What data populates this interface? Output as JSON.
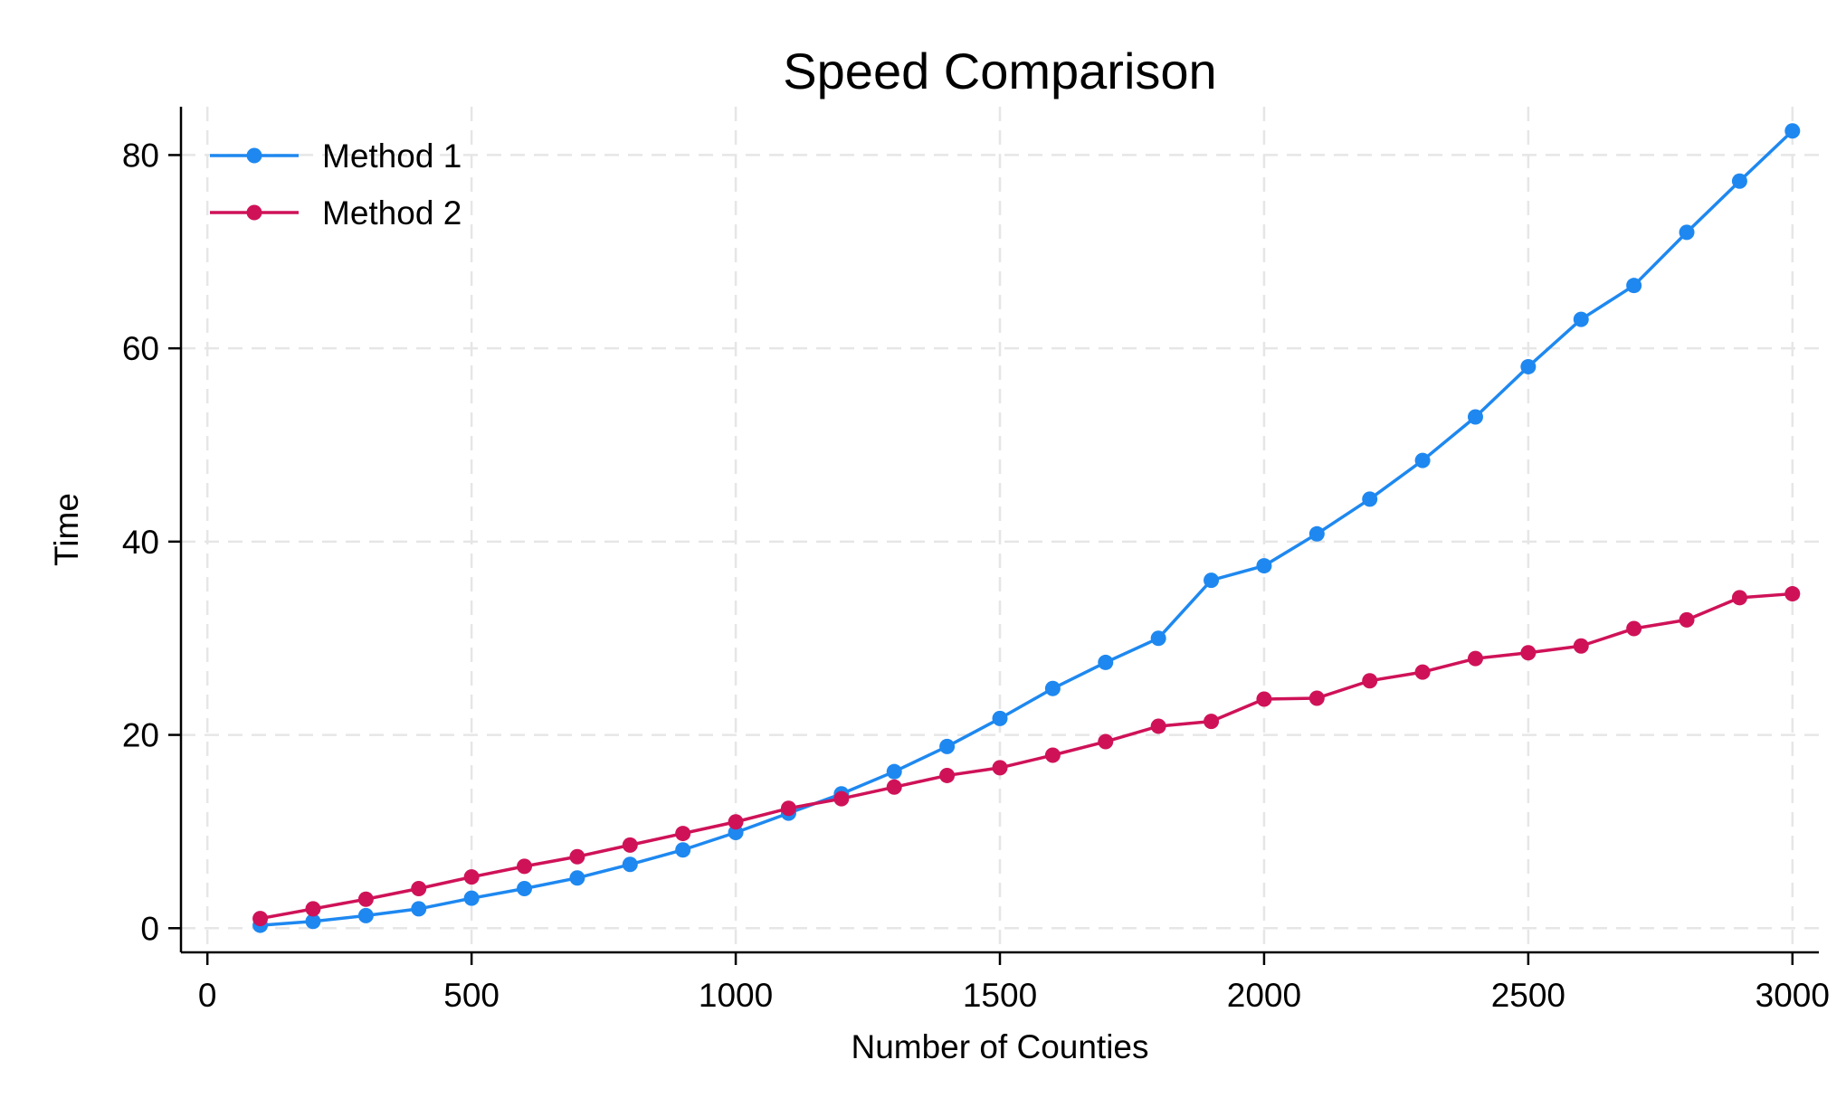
{
  "chart_data": {
    "type": "line",
    "title": "Speed Comparison",
    "xlabel": "Number of Counties",
    "ylabel": "Time",
    "xlim": [
      -50,
      3050
    ],
    "ylim": [
      -2.5,
      85
    ],
    "xticks": [
      0,
      500,
      1000,
      1500,
      2000,
      2500,
      3000
    ],
    "yticks": [
      0,
      20,
      40,
      60,
      80
    ],
    "grid": true,
    "legend_position": "top-left",
    "x": [
      100,
      200,
      300,
      400,
      500,
      600,
      700,
      800,
      900,
      1000,
      1100,
      1200,
      1300,
      1400,
      1500,
      1600,
      1700,
      1800,
      1900,
      2000,
      2100,
      2200,
      2300,
      2400,
      2500,
      2600,
      2700,
      2800,
      2900,
      3000
    ],
    "series": [
      {
        "name": "Method 1",
        "color": "#1E88F0",
        "values": [
          0.3,
          0.7,
          1.3,
          2.0,
          3.1,
          4.1,
          5.2,
          6.6,
          8.1,
          9.9,
          11.9,
          13.9,
          16.2,
          18.8,
          21.7,
          24.8,
          27.5,
          30.0,
          36.0,
          37.5,
          40.8,
          44.4,
          48.4,
          52.9,
          58.1,
          63.0,
          66.5,
          72.0,
          77.3,
          82.5
        ]
      },
      {
        "name": "Method 2",
        "color": "#CF1258",
        "values": [
          1.0,
          2.0,
          3.0,
          4.1,
          5.3,
          6.4,
          7.4,
          8.6,
          9.8,
          11.0,
          12.4,
          13.4,
          14.6,
          15.8,
          16.6,
          17.9,
          19.3,
          20.9,
          21.4,
          23.7,
          23.8,
          25.6,
          26.5,
          27.9,
          28.5,
          29.2,
          31.0,
          31.9,
          34.2,
          34.6
        ]
      }
    ]
  }
}
